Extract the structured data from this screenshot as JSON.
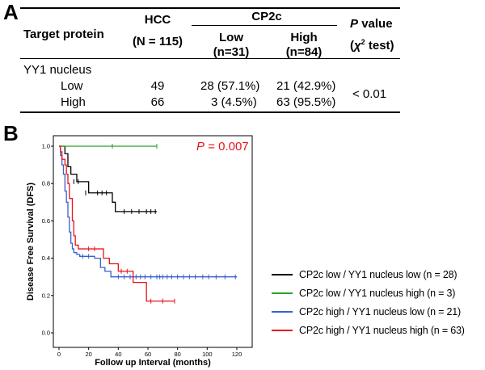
{
  "panel_a": {
    "label": "A",
    "headers": {
      "target": "Target protein",
      "hcc_line1": "HCC",
      "hcc_line2": "(N = 115)",
      "cp2c": "CP2c",
      "low_line1": "Low",
      "low_line2": "(n=31)",
      "high_line1": "High",
      "high_line2": "(n=84)",
      "pvalue_p": "P",
      "pvalue_rest": "value",
      "test_chi": "χ",
      "test_sup": "2",
      "test_rest": "test)"
    },
    "group_label": "YY1 nucleus",
    "rows": [
      {
        "label": "Low",
        "hcc": "49",
        "low": "28 (57.1%)",
        "high": "21 (42.9%)"
      },
      {
        "label": "High",
        "hcc": "66",
        "low": "3 (4.5%)",
        "high": "63 (95.5%)"
      }
    ],
    "pvalue": "< 0.01"
  },
  "panel_b": {
    "label": "B",
    "p_label": "P",
    "p_value": "= 0.007",
    "colors": {
      "black": "#000000",
      "green": "#2ca02c",
      "blue": "#3a5fcd",
      "red": "#e8141b"
    },
    "legend": [
      {
        "text": "CP2c low / YY1 nucleus low (n = 28)",
        "color": "#000000"
      },
      {
        "text": "CP2c low / YY1 nucleus high (n = 3)",
        "color": "#2ca02c"
      },
      {
        "text": "CP2c high / YY1 nucleus low (n = 21)",
        "color": "#3a5fcd"
      },
      {
        "text": "CP2c high / YY1 nucleus high (n = 63)",
        "color": "#e8141b"
      }
    ]
  },
  "chart_data": {
    "type": "line",
    "title": "",
    "xlabel": "Follow up Interval (months)",
    "ylabel": "Disease Free Survival (DFS)",
    "xlim": [
      0,
      125
    ],
    "ylim": [
      0,
      1.0
    ],
    "xticks": [
      "0",
      "20",
      "40",
      "60",
      "80",
      "100",
      "120"
    ],
    "yticks": [
      "0.0",
      "0.2",
      "0.4",
      "0.6",
      "0.8",
      "1.0"
    ],
    "step": true,
    "series": [
      {
        "name": "CP2c low / YY1 nucleus low (n = 28)",
        "color": "#000000",
        "x": [
          0,
          3,
          4,
          6,
          8,
          12,
          14,
          20,
          34,
          36,
          38,
          66
        ],
        "y": [
          1.0,
          1.0,
          0.96,
          0.89,
          0.85,
          0.81,
          0.81,
          0.75,
          0.75,
          0.7,
          0.65,
          0.65
        ],
        "censor_x": [
          10,
          13,
          18,
          26,
          29,
          32,
          44,
          49,
          54,
          59,
          62,
          65
        ],
        "censor_y": [
          0.81,
          0.81,
          0.75,
          0.75,
          0.75,
          0.75,
          0.65,
          0.65,
          0.65,
          0.65,
          0.65,
          0.65
        ]
      },
      {
        "name": "CP2c low / YY1 nucleus high (n = 3)",
        "color": "#2ca02c",
        "x": [
          0,
          66
        ],
        "y": [
          1.0,
          1.0
        ],
        "censor_x": [
          36,
          66
        ],
        "censor_y": [
          1.0,
          1.0
        ]
      },
      {
        "name": "CP2c high / YY1 nucleus low (n = 21)",
        "color": "#3a5fcd",
        "x": [
          0,
          1,
          2,
          3,
          4,
          5,
          6,
          7,
          8,
          9,
          10,
          12,
          14,
          18,
          24,
          28,
          31,
          35,
          38,
          120
        ],
        "y": [
          1.0,
          0.95,
          0.9,
          0.85,
          0.76,
          0.7,
          0.62,
          0.54,
          0.48,
          0.45,
          0.43,
          0.42,
          0.41,
          0.41,
          0.4,
          0.35,
          0.33,
          0.3,
          0.3,
          0.3
        ],
        "censor_x": [
          16,
          20,
          40,
          44,
          48,
          52,
          55,
          58,
          62,
          66,
          68,
          70,
          73,
          76,
          80,
          84,
          88,
          92,
          97,
          101,
          106,
          112,
          119
        ],
        "censor_y": [
          0.41,
          0.41,
          0.3,
          0.3,
          0.3,
          0.3,
          0.3,
          0.3,
          0.3,
          0.3,
          0.3,
          0.3,
          0.3,
          0.3,
          0.3,
          0.3,
          0.3,
          0.3,
          0.3,
          0.3,
          0.3,
          0.3,
          0.3
        ]
      },
      {
        "name": "CP2c high / YY1 nucleus high (n = 63)",
        "color": "#e8141b",
        "x": [
          0,
          1,
          2,
          4,
          5,
          6,
          7,
          9,
          10,
          11,
          13,
          15,
          28,
          30,
          34,
          40,
          44,
          50,
          55,
          59,
          78
        ],
        "y": [
          1.0,
          0.97,
          0.93,
          0.9,
          0.85,
          0.8,
          0.72,
          0.6,
          0.52,
          0.47,
          0.45,
          0.45,
          0.45,
          0.4,
          0.37,
          0.33,
          0.33,
          0.27,
          0.27,
          0.17,
          0.17
        ],
        "censor_x": [
          20,
          24,
          42,
          46,
          62,
          70,
          78
        ],
        "censor_y": [
          0.45,
          0.45,
          0.33,
          0.33,
          0.17,
          0.17,
          0.17
        ]
      }
    ]
  }
}
